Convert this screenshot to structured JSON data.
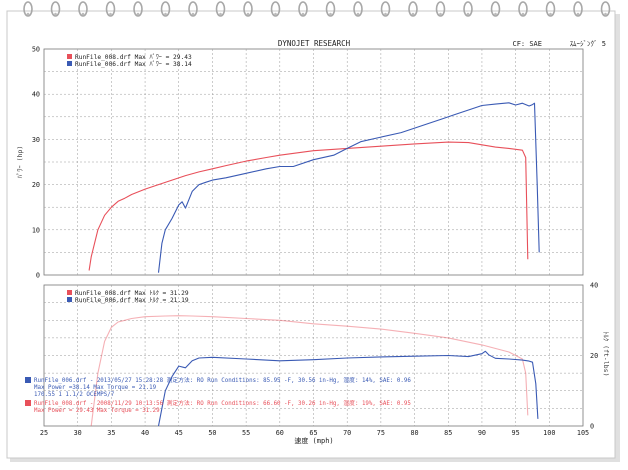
{
  "header": {
    "title": "DYNOJET RESEARCH",
    "cf_label": "CF: SAE",
    "smoothing_label": "ｽﾑｰｼﾞﾝｸﾞ 5"
  },
  "colors": {
    "red": "#e8505a",
    "blue": "#3a5ab4",
    "grid": "#9a9a9a",
    "ring": "#a8a8a8",
    "paper": "#ffffff",
    "frame": "#d8d8d8"
  },
  "legend_top": [
    {
      "text": "RunFile_008.drf Max ﾊﾟﾜｰ = 29.43",
      "color": "red"
    },
    {
      "text": "RunFile_006.drf Max ﾊﾟﾜｰ = 38.14",
      "color": "blue"
    }
  ],
  "legend_bottom": [
    {
      "text": "RunFile_008.drf Max ﾄﾙｸ = 31.29",
      "color": "red"
    },
    {
      "text": "RunFile_006.drf Max ﾄﾙｸ = 21.19",
      "color": "blue"
    }
  ],
  "run_info": {
    "blue_line1": "RunFile_006.drf - 2013/05/27 15:28:28  測定方法: RO  Run Conditions: 85.95 -F, 30.56 in-Hg,  湿度: 14%, SAE: 0.96",
    "blue_line2": "Max Power =38.14  Max Torque = 21.19",
    "blue_line3": "170.55 1 1.1/2 OCEMPS/7",
    "red_line1": "RunFile_008.drf - 2008/11/29 10:13:56  測定方法: RO  Run Conditions: 66.60 -F, 30.26 in-Hg,  湿度: 19%, SAE: 0.95",
    "red_line2": "Max Power = 29.43  Max Torque = 31.29"
  },
  "chart_data": [
    {
      "type": "line",
      "title": "DYNOJET RESEARCH",
      "xlabel": "",
      "ylabel": "ﾊﾟﾜｰ (hp)",
      "xlim": [
        25,
        105
      ],
      "ylim": [
        0,
        50
      ],
      "yticks": [
        0,
        10,
        20,
        30,
        40,
        50
      ],
      "grid": true,
      "legend_position": "top-left",
      "series": [
        {
          "name": "RunFile_008.drf",
          "color": "red",
          "x": [
            31.7,
            32.0,
            33.0,
            34.0,
            35.0,
            36.0,
            37.0,
            38.0,
            40.0,
            42.0,
            44.0,
            46.0,
            48.0,
            50.0,
            52.0,
            55.0,
            58.0,
            60.0,
            65.0,
            70.0,
            75.0,
            80.0,
            85.0,
            88.0,
            90.0,
            92.0,
            94.0,
            95.0,
            96.0,
            96.5,
            96.8
          ],
          "y": [
            1.0,
            4.0,
            10.0,
            13.2,
            15.0,
            16.3,
            17.0,
            17.8,
            19.0,
            20.0,
            21.0,
            22.0,
            22.8,
            23.5,
            24.2,
            25.2,
            26.0,
            26.5,
            27.5,
            28.0,
            28.5,
            29.0,
            29.4,
            29.3,
            28.8,
            28.3,
            28.0,
            27.8,
            27.6,
            26.0,
            3.5
          ]
        },
        {
          "name": "RunFile_006.drf",
          "color": "blue",
          "x": [
            42.0,
            42.5,
            43.0,
            44.0,
            45.0,
            45.5,
            46.0,
            47.0,
            48.0,
            49.0,
            50.0,
            52.0,
            55.0,
            58.0,
            60.0,
            62.0,
            65.0,
            68.0,
            70.0,
            72.0,
            75.0,
            78.0,
            80.0,
            82.0,
            84.0,
            86.0,
            88.0,
            90.0,
            92.0,
            94.0,
            95.0,
            96.0,
            97.0,
            97.5,
            97.8,
            98.2,
            98.5
          ],
          "y": [
            0.5,
            7.0,
            10.0,
            12.5,
            15.5,
            16.2,
            14.8,
            18.5,
            20.0,
            20.5,
            21.0,
            21.5,
            22.5,
            23.5,
            24.0,
            24.0,
            25.5,
            26.5,
            28.0,
            29.5,
            30.5,
            31.5,
            32.5,
            33.5,
            34.5,
            35.5,
            36.5,
            37.5,
            37.8,
            38.1,
            37.6,
            38.0,
            37.4,
            37.7,
            38.0,
            20.0,
            5.0
          ]
        }
      ]
    },
    {
      "type": "line",
      "xlabel": "速度 (mph)",
      "ylabel": "ﾄﾙｸ (ft-lbs)",
      "xlim": [
        25,
        105
      ],
      "ylim": [
        0,
        40
      ],
      "xticks": [
        25,
        30,
        35,
        40,
        45,
        50,
        55,
        60,
        65,
        70,
        75,
        80,
        85,
        90,
        95,
        100,
        105
      ],
      "yticks": [
        0,
        20,
        40
      ],
      "grid": true,
      "legend_position": "top-left",
      "series": [
        {
          "name": "RunFile_008.drf",
          "color": "red",
          "x": [
            32.0,
            33.0,
            34.0,
            35.0,
            36.0,
            37.0,
            38.0,
            40.0,
            43.0,
            45.0,
            47.0,
            50.0,
            55.0,
            60.0,
            65.0,
            70.0,
            75.0,
            80.0,
            85.0,
            90.0,
            94.0,
            96.0,
            96.5,
            96.8
          ],
          "y": [
            0.0,
            15.0,
            24.0,
            28.0,
            29.5,
            30.0,
            30.5,
            31.0,
            31.2,
            31.3,
            31.2,
            31.0,
            30.5,
            30.0,
            29.0,
            28.3,
            27.5,
            26.3,
            25.0,
            23.0,
            21.0,
            19.0,
            15.0,
            3.0
          ]
        },
        {
          "name": "RunFile_006.drf",
          "color": "blue",
          "x": [
            42.0,
            43.0,
            44.0,
            45.0,
            46.0,
            47.0,
            48.0,
            50.0,
            55.0,
            60.0,
            65.0,
            70.0,
            75.0,
            80.0,
            85.0,
            88.0,
            90.0,
            90.5,
            91.0,
            92.0,
            94.0,
            96.0,
            97.0,
            97.5,
            98.0,
            98.3
          ],
          "y": [
            0.0,
            10.0,
            14.0,
            17.0,
            16.5,
            18.5,
            19.3,
            19.5,
            19.0,
            18.5,
            18.8,
            19.3,
            19.6,
            19.8,
            20.0,
            19.7,
            20.5,
            21.2,
            20.2,
            19.2,
            19.0,
            18.7,
            18.4,
            18.1,
            12.0,
            2.0
          ]
        }
      ]
    }
  ]
}
